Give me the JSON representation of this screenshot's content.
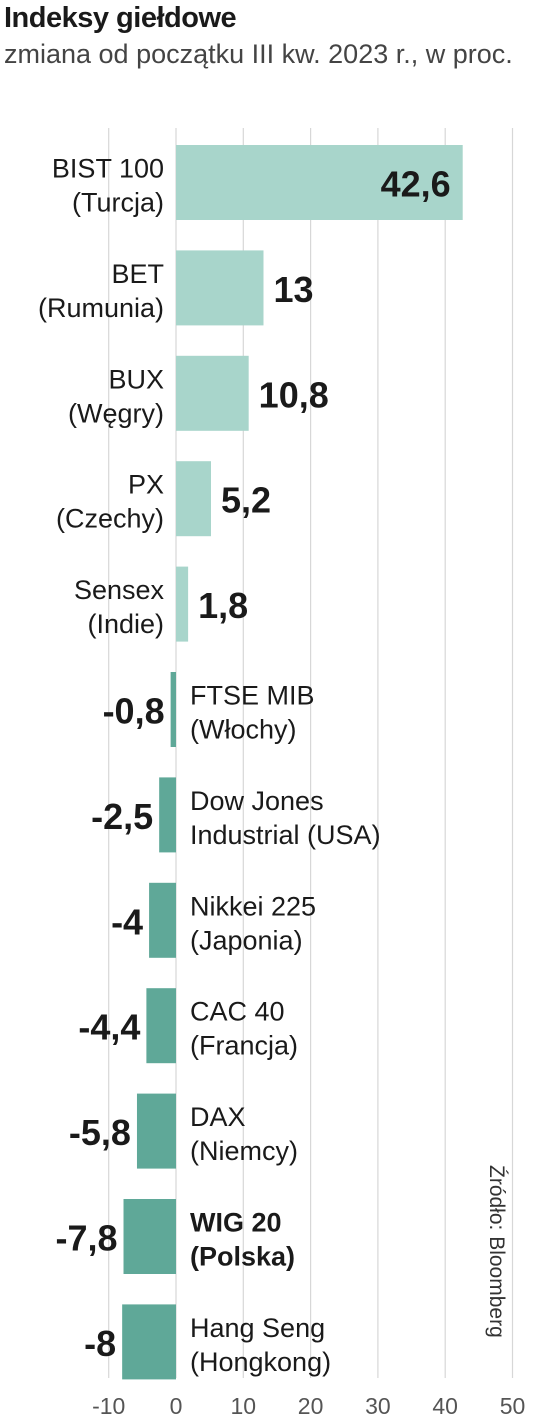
{
  "title": "Indeksy giełdowe",
  "subtitle": "zmiana od początku III kw. 2023 r., w proc.",
  "source": "Źródło: Bloomberg",
  "colors": {
    "positive": "#a8d5cb",
    "negative": "#5fa898",
    "grid": "#d7d7d7"
  },
  "chart_data": {
    "type": "bar",
    "orientation": "horizontal",
    "categories": [
      {
        "line1": "BIST 100",
        "line2": "(Turcja)",
        "bold": false
      },
      {
        "line1": "BET",
        "line2": "(Rumunia)",
        "bold": false
      },
      {
        "line1": "BUX",
        "line2": "(Węgry)",
        "bold": false
      },
      {
        "line1": "PX",
        "line2": "(Czechy)",
        "bold": false
      },
      {
        "line1": "Sensex",
        "line2": "(Indie)",
        "bold": false
      },
      {
        "line1": "FTSE MIB",
        "line2": "(Włochy)",
        "bold": false
      },
      {
        "line1": "Dow Jones",
        "line2": "Industrial (USA)",
        "bold": false
      },
      {
        "line1": "Nikkei 225",
        "line2": "(Japonia)",
        "bold": false
      },
      {
        "line1": "CAC 40",
        "line2": "(Francja)",
        "bold": false
      },
      {
        "line1": "DAX",
        "line2": "(Niemcy)",
        "bold": false
      },
      {
        "line1": "WIG 20",
        "line2": "(Polska)",
        "bold": true
      },
      {
        "line1": "Hang Seng",
        "line2": "(Hongkong)",
        "bold": false
      }
    ],
    "values": [
      42.6,
      13,
      10.8,
      5.2,
      1.8,
      -0.8,
      -2.5,
      -4,
      -4.4,
      -5.8,
      -7.8,
      -8
    ],
    "value_labels": [
      "42,6",
      "13",
      "10,8",
      "5,2",
      "1,8",
      "-0,8",
      "-2,5",
      "-4",
      "-4,4",
      "-5,8",
      "-7,8",
      "-8"
    ],
    "xlim": [
      -10,
      50
    ],
    "xticks": [
      -10,
      0,
      10,
      20,
      30,
      40,
      50
    ],
    "xtick_labels": [
      "-10",
      "0",
      "10",
      "20",
      "30",
      "40",
      "50"
    ],
    "grid": true
  }
}
